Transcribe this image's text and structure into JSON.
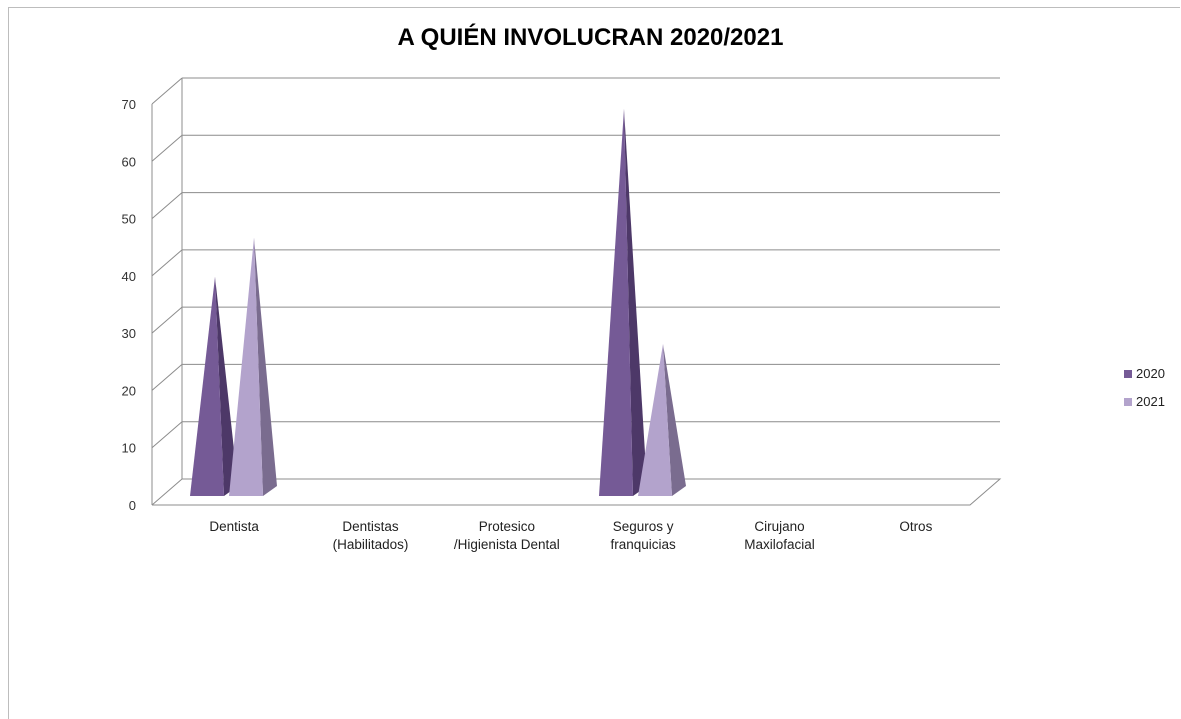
{
  "chart_data": {
    "type": "bar",
    "title": "A QUIÉN INVOLUCRAN 2020/2021",
    "categories": [
      "Dentista",
      "Dentistas (Habilitados)",
      "Protesico /Higienista Dental",
      "Seguros y franquicias",
      "Cirujano Maxilofacial",
      "Otros"
    ],
    "category_lines": [
      [
        "Dentista"
      ],
      [
        "Dentistas",
        "(Habilitados)"
      ],
      [
        "Protesico",
        "/Higienista Dental"
      ],
      [
        "Seguros y",
        "franquicias"
      ],
      [
        "Cirujano",
        "Maxilofacial"
      ],
      [
        "Otros"
      ]
    ],
    "series": [
      {
        "name": "2020",
        "values": [
          37,
          0,
          0,
          67,
          0,
          0
        ],
        "color": "#755a96",
        "dark": "#4d3868"
      },
      {
        "name": "2021",
        "values": [
          44,
          0,
          0,
          25,
          0,
          0
        ],
        "color": "#b3a3cc",
        "dark": "#7a6c8f"
      }
    ],
    "ylim": [
      0,
      70
    ],
    "yticks": [
      0,
      10,
      20,
      30,
      40,
      50,
      60,
      70
    ],
    "grid": true,
    "legend": "right",
    "mark_shape": "pyramid-3d"
  }
}
